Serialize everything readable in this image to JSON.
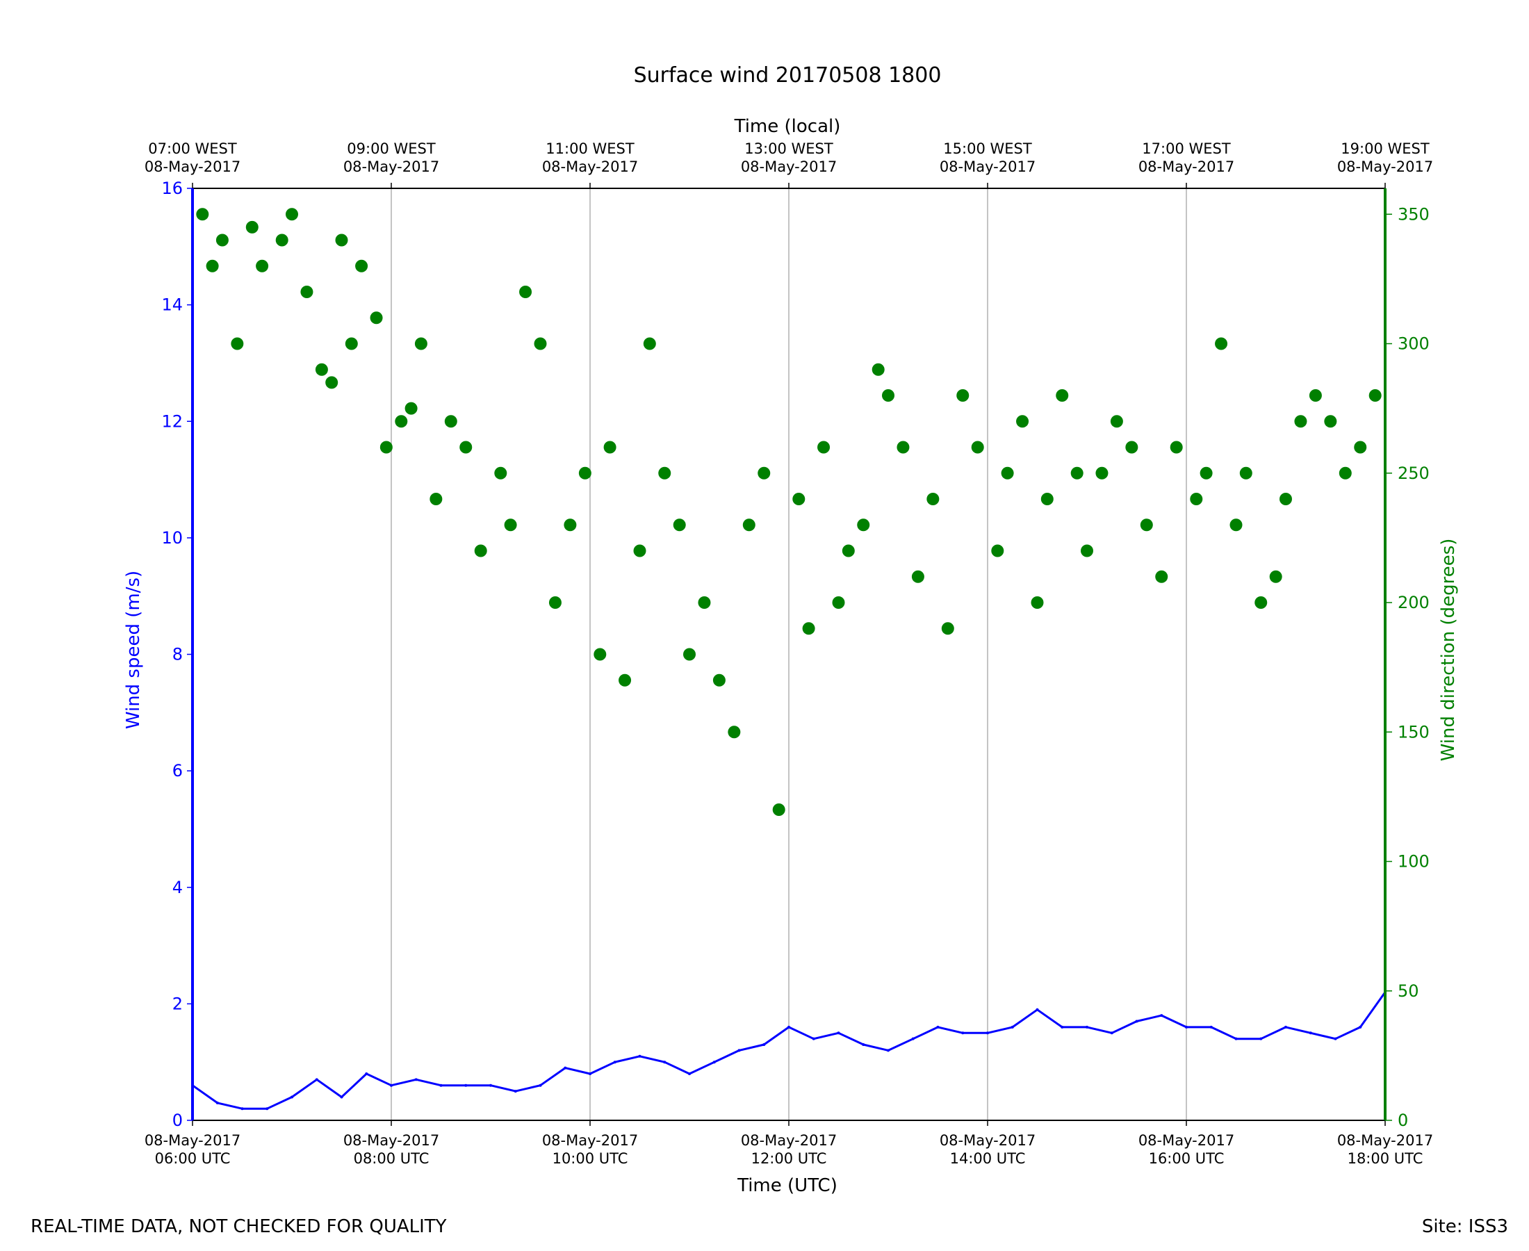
{
  "chart_data": {
    "type": "line+scatter",
    "title": "Surface wind 20170508 1800",
    "xlabel": "Time (UTC)",
    "x2label": "Time (local)",
    "ylabel": "Wind speed (m/s)",
    "y2label": "Wind direction (degrees)",
    "xlim_hours_utc": [
      6,
      18
    ],
    "ylim": [
      0,
      16
    ],
    "y2lim": [
      0,
      360
    ],
    "yticks": [
      0,
      2,
      4,
      6,
      8,
      10,
      12,
      14,
      16
    ],
    "y2ticks": [
      0,
      50,
      100,
      150,
      200,
      250,
      300,
      350
    ],
    "grid": "vertical lines at 2-hour ticks",
    "colors": {
      "speed": "#0000ff",
      "direction": "#008000",
      "grid": "#b0b0b0"
    },
    "xticks_bottom": [
      {
        "hour": 6,
        "date": "08-May-2017",
        "time": "06:00 UTC"
      },
      {
        "hour": 8,
        "date": "08-May-2017",
        "time": "08:00 UTC"
      },
      {
        "hour": 10,
        "date": "08-May-2017",
        "time": "10:00 UTC"
      },
      {
        "hour": 12,
        "date": "08-May-2017",
        "time": "12:00 UTC"
      },
      {
        "hour": 14,
        "date": "08-May-2017",
        "time": "14:00 UTC"
      },
      {
        "hour": 16,
        "date": "08-May-2017",
        "time": "16:00 UTC"
      },
      {
        "hour": 18,
        "date": "08-May-2017",
        "time": "18:00 UTC"
      }
    ],
    "xticks_top": [
      {
        "hour": 6,
        "time": "07:00 WEST",
        "date": "08-May-2017"
      },
      {
        "hour": 8,
        "time": "09:00 WEST",
        "date": "08-May-2017"
      },
      {
        "hour": 10,
        "time": "11:00 WEST",
        "date": "08-May-2017"
      },
      {
        "hour": 12,
        "time": "13:00 WEST",
        "date": "08-May-2017"
      },
      {
        "hour": 14,
        "time": "15:00 WEST",
        "date": "08-May-2017"
      },
      {
        "hour": 16,
        "time": "17:00 WEST",
        "date": "08-May-2017"
      },
      {
        "hour": 18,
        "time": "19:00 WEST",
        "date": "08-May-2017"
      }
    ],
    "series": [
      {
        "name": "Wind speed",
        "axis": "left",
        "style": "line",
        "x_hours": [
          6.0,
          6.25,
          6.5,
          6.75,
          7.0,
          7.25,
          7.5,
          7.75,
          8.0,
          8.25,
          8.5,
          8.75,
          9.0,
          9.25,
          9.5,
          9.75,
          10.0,
          10.25,
          10.5,
          10.75,
          11.0,
          11.25,
          11.5,
          11.75,
          12.0,
          12.25,
          12.5,
          12.75,
          13.0,
          13.25,
          13.5,
          13.75,
          14.0,
          14.25,
          14.5,
          14.75,
          15.0,
          15.25,
          15.5,
          15.75,
          16.0,
          16.25,
          16.5,
          16.75,
          17.0,
          17.25,
          17.5,
          17.75,
          18.0
        ],
        "values": [
          0.6,
          0.3,
          0.2,
          0.2,
          0.4,
          0.7,
          0.4,
          0.8,
          0.6,
          0.7,
          0.6,
          0.6,
          0.6,
          0.5,
          0.6,
          0.9,
          0.8,
          1.0,
          1.1,
          1.0,
          0.8,
          1.0,
          1.2,
          1.3,
          1.6,
          1.4,
          1.5,
          1.3,
          1.2,
          1.4,
          1.6,
          1.5,
          1.5,
          1.6,
          1.9,
          1.6,
          1.6,
          1.5,
          1.7,
          1.8,
          1.6,
          1.6,
          1.4,
          1.4,
          1.6,
          1.5,
          1.4,
          1.6,
          2.2
        ]
      },
      {
        "name": "Wind direction",
        "axis": "right",
        "style": "scatter",
        "x_hours": [
          6.1,
          6.2,
          6.3,
          6.45,
          6.6,
          6.7,
          6.9,
          7.0,
          7.15,
          7.3,
          7.4,
          7.5,
          7.6,
          7.7,
          7.85,
          7.95,
          8.1,
          8.2,
          8.3,
          8.45,
          8.6,
          8.75,
          8.9,
          9.1,
          9.2,
          9.35,
          9.5,
          9.65,
          9.8,
          9.95,
          10.1,
          10.2,
          10.35,
          10.5,
          10.6,
          10.75,
          10.9,
          11.0,
          11.15,
          11.3,
          11.45,
          11.6,
          11.75,
          11.9,
          12.1,
          12.2,
          12.35,
          12.5,
          12.6,
          12.75,
          12.9,
          13.0,
          13.15,
          13.3,
          13.45,
          13.6,
          13.75,
          13.9,
          14.1,
          14.2,
          14.35,
          14.5,
          14.6,
          14.75,
          14.9,
          15.0,
          15.15,
          15.3,
          15.45,
          15.6,
          15.75,
          15.9,
          16.1,
          16.2,
          16.35,
          16.5,
          16.6,
          16.75,
          16.9,
          17.0,
          17.15,
          17.3,
          17.45,
          17.6,
          17.75,
          17.9
        ],
        "values": [
          350,
          330,
          340,
          300,
          345,
          330,
          340,
          350,
          320,
          290,
          285,
          340,
          300,
          330,
          310,
          260,
          270,
          275,
          300,
          240,
          270,
          260,
          220,
          250,
          230,
          320,
          300,
          200,
          230,
          250,
          180,
          260,
          170,
          220,
          300,
          250,
          230,
          180,
          200,
          170,
          150,
          230,
          250,
          120,
          240,
          190,
          260,
          200,
          220,
          230,
          290,
          280,
          260,
          210,
          240,
          190,
          280,
          260,
          220,
          250,
          270,
          200,
          240,
          280,
          250,
          220,
          250,
          270,
          260,
          230,
          210,
          260,
          240,
          250,
          300,
          230,
          250,
          200,
          210,
          240,
          270,
          280,
          270,
          250,
          260,
          280
        ]
      }
    ]
  },
  "footer": {
    "left": "REAL-TIME DATA, NOT CHECKED FOR QUALITY",
    "right": "Site: ISS3"
  }
}
